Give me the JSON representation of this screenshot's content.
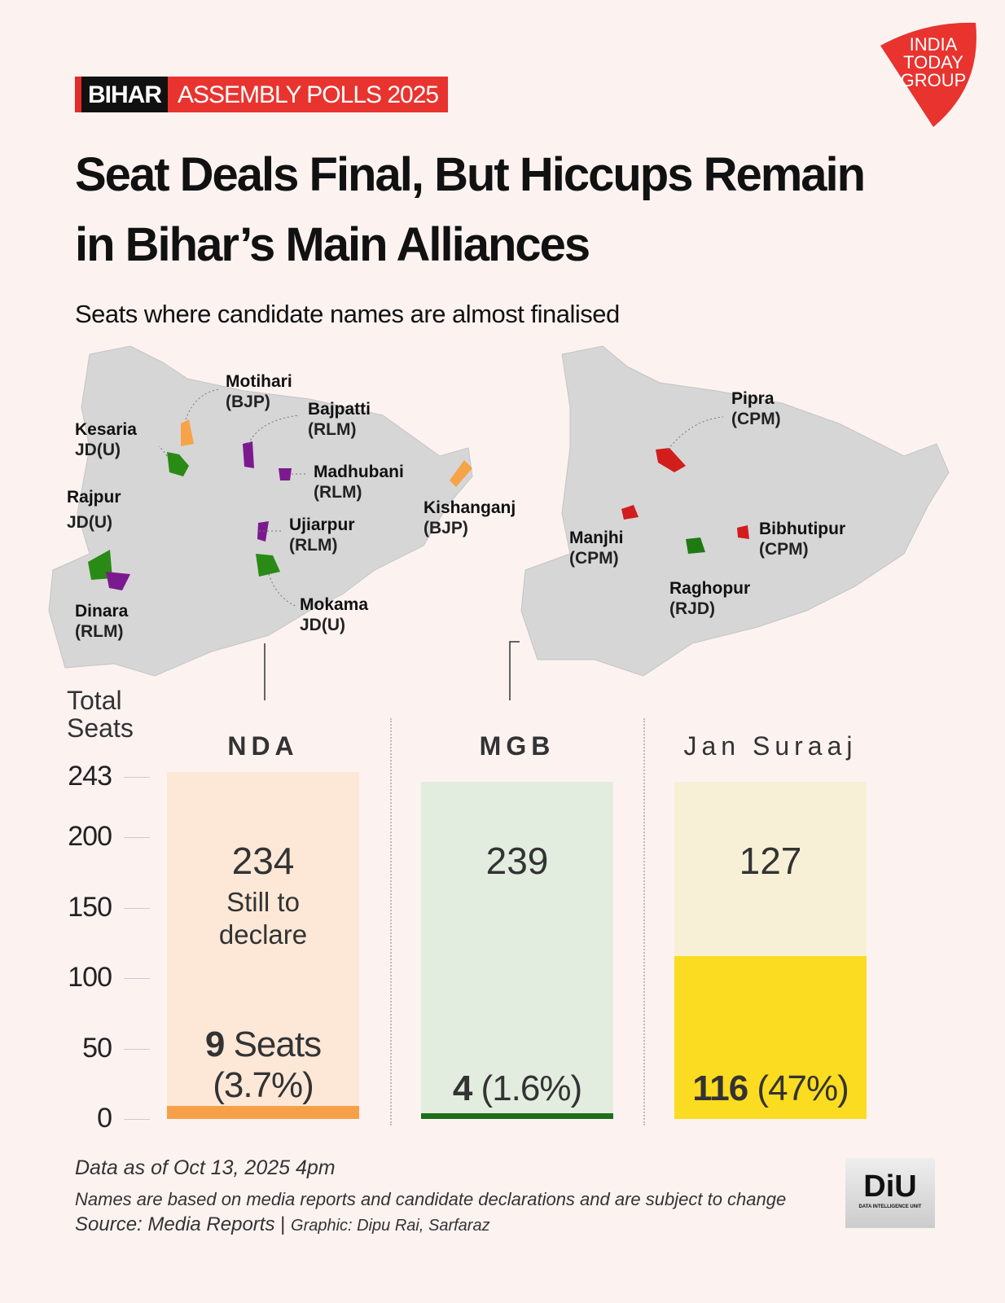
{
  "header": {
    "kicker_state": "BIHAR",
    "kicker_text": "ASSEMBLY POLLS 2025",
    "title": "Seat Deals Final, But Hiccups Remain in Bihar’s Main Alliances",
    "subtitle": "Seats where candidate names are almost finalised",
    "logo_text": "INDIA TODAY GROUP",
    "logo_color": "#e8332f"
  },
  "maps": {
    "nda": [
      {
        "name": "Motihari",
        "party": "(BJP)"
      },
      {
        "name": "Bajpatti",
        "party": "(RLM)"
      },
      {
        "name": "Kesaria",
        "party": "JD(U)"
      },
      {
        "name": "Madhubani",
        "party": "(RLM)"
      },
      {
        "name": "Kishanganj",
        "party": "(BJP)"
      },
      {
        "name": "Rajpur",
        "party": "JD(U)"
      },
      {
        "name": "Ujiarpur",
        "party": "(RLM)"
      },
      {
        "name": "Dinara",
        "party": "(RLM)"
      },
      {
        "name": "Mokama",
        "party": "JD(U)"
      }
    ],
    "mgb": [
      {
        "name": "Pipra",
        "party": "(CPM)"
      },
      {
        "name": "Manjhi",
        "party": "(CPM)"
      },
      {
        "name": "Bibhutipur",
        "party": "(CPM)"
      },
      {
        "name": "Raghopur",
        "party": "(RJD)"
      }
    ],
    "party_colors": {
      "BJP": "#f7a348",
      "RLM": "#7b1a8f",
      "JDU": "#2a8a16",
      "CPM": "#d21d1d",
      "RJD": "#1f7a12"
    },
    "map_color": "#d6d6d6"
  },
  "chart_data": {
    "type": "bar",
    "ylabel": "Total Seats",
    "ylim": [
      0,
      243
    ],
    "yticks": [
      0,
      50,
      100,
      150,
      200,
      243
    ],
    "categories": [
      "NDA",
      "MGB",
      "Jan Suraaj"
    ],
    "declared": [
      9,
      4,
      116
    ],
    "still_to_declare": [
      234,
      239,
      127
    ],
    "declared_labels": [
      {
        "num": "9",
        "rest": " Seats",
        "pct": "(3.7%)"
      },
      {
        "num": "4",
        "rest": " (1.6%)",
        "pct": ""
      },
      {
        "num": "116",
        "rest": " (47%)",
        "pct": ""
      }
    ],
    "still_label": "Still to declare",
    "colors": {
      "declared": [
        "#f7a04a",
        "#1e6e1a",
        "#fcdc20"
      ],
      "remaining": [
        "#fde8d8",
        "#e2ede0",
        "#f8f0d6"
      ]
    }
  },
  "footer": {
    "date": "Data as of Oct 13, 2025 4pm",
    "note": "Names are based on media reports and candidate declarations and are subject to change",
    "source": "Source: Media Reports",
    "graphic": "Graphic: Dipu Rai, Sarfaraz",
    "diu_text": "DiU",
    "diu_sub": "DATA INTELLIGENCE UNIT"
  }
}
